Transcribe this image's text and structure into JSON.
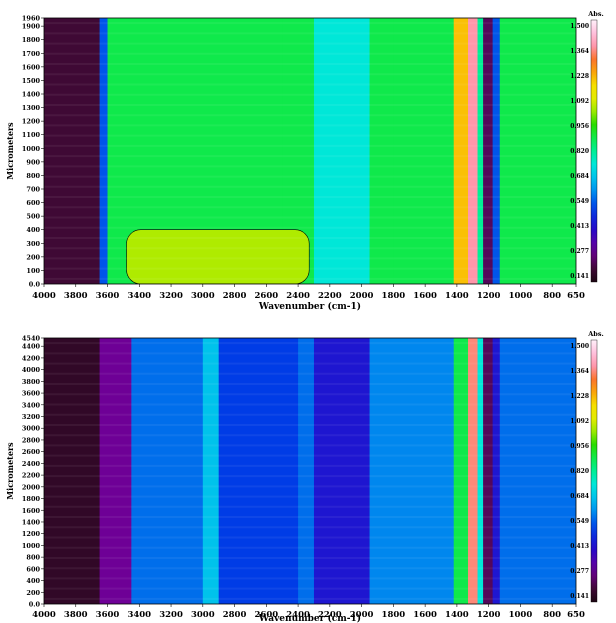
{
  "chart_data": [
    {
      "type": "heatmap",
      "xlabel": "Wavenumber (cm-1)",
      "ylabel": "Micrometers",
      "xlim": [
        4000,
        650
      ],
      "ylim": [
        0,
        1960
      ],
      "xticks": [
        "4000",
        "3800",
        "3600",
        "3400",
        "3200",
        "3000",
        "2800",
        "2600",
        "2400",
        "2200",
        "2000",
        "1800",
        "1600",
        "1400",
        "1200",
        "1000",
        "800",
        "650"
      ],
      "yticks": [
        "0.0",
        "100",
        "200",
        "300",
        "400",
        "500",
        "600",
        "700",
        "800",
        "900",
        "1000",
        "1100",
        "1200",
        "1300",
        "1400",
        "1500",
        "1600",
        "1700",
        "1800",
        "1900",
        "1960"
      ],
      "colorbar": {
        "title": "Abs.",
        "ticks": [
          "1.500",
          "1.364",
          "1.228",
          "1.092",
          "0.956",
          "0.820",
          "0.684",
          "0.549",
          "0.413",
          "0.277",
          "0.141"
        ]
      },
      "bands": [
        {
          "x": [
            4000,
            3650
          ],
          "level": 0.05
        },
        {
          "x": [
            3650,
            3600
          ],
          "level": 0.3
        },
        {
          "x": [
            3600,
            2500
          ],
          "level": 0.55
        },
        {
          "x": [
            2500,
            2300
          ],
          "level": 0.55
        },
        {
          "x": [
            2300,
            1950
          ],
          "level": 0.45
        },
        {
          "x": [
            1950,
            1800
          ],
          "level": 0.55
        },
        {
          "x": [
            1800,
            1420
          ],
          "level": 0.55
        },
        {
          "x": [
            1420,
            1330
          ],
          "level": 0.78
        },
        {
          "x": [
            1330,
            1270
          ],
          "level": 0.9
        },
        {
          "x": [
            1270,
            1235
          ],
          "level": 0.5
        },
        {
          "x": [
            1235,
            1175
          ],
          "level": 0.08
        },
        {
          "x": [
            1175,
            1130
          ],
          "level": 0.3
        },
        {
          "x": [
            1130,
            650
          ],
          "level": 0.55
        }
      ],
      "features": [
        {
          "label": "high-absorbance-patch",
          "x": [
            3480,
            2330
          ],
          "y": [
            0,
            400
          ],
          "level": 0.66
        }
      ]
    },
    {
      "type": "heatmap",
      "xlabel": "Wavenumber (cm-1)",
      "ylabel": "Micrometers",
      "xlim": [
        4000,
        650
      ],
      "ylim": [
        0,
        4540
      ],
      "xticks": [
        "4000",
        "3800",
        "3600",
        "3400",
        "3200",
        "3000",
        "2800",
        "2600",
        "2400",
        "2200",
        "2000",
        "1800",
        "1600",
        "1400",
        "1200",
        "1000",
        "800",
        "650"
      ],
      "yticks": [
        "0.0",
        "200",
        "400",
        "600",
        "800",
        "1000",
        "1200",
        "1400",
        "1600",
        "1800",
        "2000",
        "2200",
        "2400",
        "2600",
        "2800",
        "3000",
        "3200",
        "3400",
        "3600",
        "3800",
        "4000",
        "4200",
        "4400",
        "4540"
      ],
      "colorbar": {
        "title": "Abs.",
        "ticks": [
          "1.500",
          "1.364",
          "1.228",
          "1.092",
          "0.956",
          "0.820",
          "0.684",
          "0.549",
          "0.413",
          "0.277",
          "0.141"
        ]
      },
      "bands": [
        {
          "x": [
            4000,
            3650
          ],
          "level": 0.03
        },
        {
          "x": [
            3650,
            3450
          ],
          "level": 0.12
        },
        {
          "x": [
            3450,
            3000
          ],
          "level": 0.32
        },
        {
          "x": [
            3000,
            2900
          ],
          "level": 0.4
        },
        {
          "x": [
            2900,
            2400
          ],
          "level": 0.28
        },
        {
          "x": [
            2400,
            2300
          ],
          "level": 0.32
        },
        {
          "x": [
            2300,
            1950
          ],
          "level": 0.22
        },
        {
          "x": [
            1950,
            1420
          ],
          "level": 0.34
        },
        {
          "x": [
            1420,
            1330
          ],
          "level": 0.55
        },
        {
          "x": [
            1330,
            1270
          ],
          "level": 0.88
        },
        {
          "x": [
            1270,
            1235
          ],
          "level": 0.45
        },
        {
          "x": [
            1235,
            1175
          ],
          "level": 0.08
        },
        {
          "x": [
            1175,
            1130
          ],
          "level": 0.22
        },
        {
          "x": [
            1130,
            650
          ],
          "level": 0.32
        }
      ],
      "features": []
    }
  ]
}
